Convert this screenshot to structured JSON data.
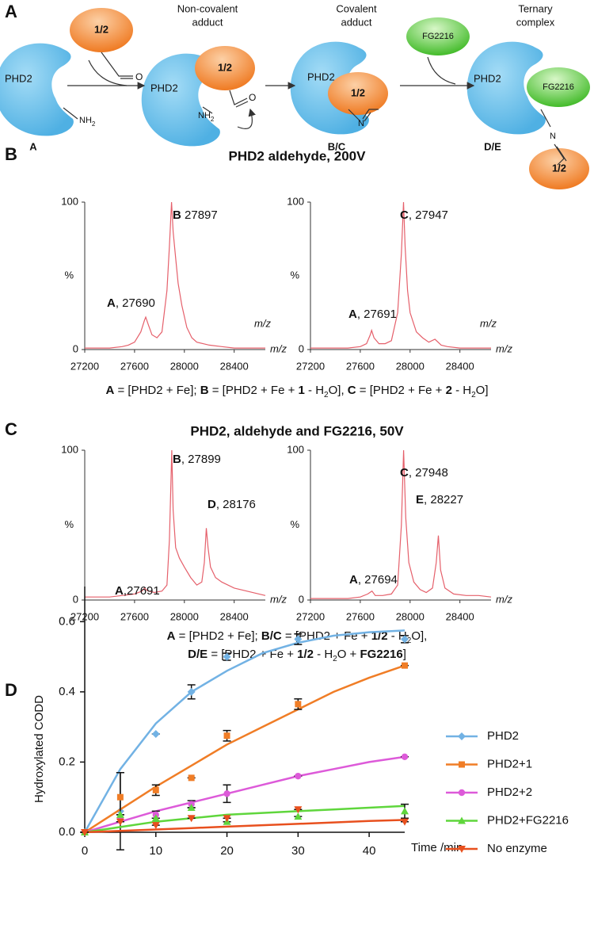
{
  "panel_labels": [
    "A",
    "B",
    "C",
    "D"
  ],
  "diagram": {
    "protein": "PHD2",
    "ligand": "1/2",
    "inhibitor": "FG2216",
    "amine": {
      "text": "NH",
      "sub": "2"
    },
    "oxygen": "O",
    "nitrogen": "N",
    "stages": [
      [
        "Non-covalent",
        "adduct"
      ],
      [
        "Covalent",
        "adduct"
      ],
      [
        "Ternary",
        "complex"
      ]
    ],
    "species": [
      "A",
      "B/C",
      "D/E"
    ]
  },
  "panel_b": {
    "title": "PHD2 aldehyde, 200V",
    "caption": [
      {
        "style": "bold",
        "text": "A"
      },
      {
        "style": "normal",
        "text": " = [PHD2 + Fe]; "
      },
      {
        "style": "bold",
        "text": "B"
      },
      {
        "style": "normal",
        "text": " = [PHD2 + Fe + "
      },
      {
        "style": "bold",
        "text": "1"
      },
      {
        "style": "normal",
        "text": " - H"
      },
      {
        "style": "sub",
        "text": "2"
      },
      {
        "style": "normal",
        "text": "O], "
      },
      {
        "style": "bold",
        "text": "C"
      },
      {
        "style": "normal",
        "text": " = [PHD2 + Fe + "
      },
      {
        "style": "bold",
        "text": "2"
      },
      {
        "style": "normal",
        "text": " - H"
      },
      {
        "style": "sub",
        "text": "2"
      },
      {
        "style": "normal",
        "text": "O]"
      }
    ]
  },
  "panel_c": {
    "title": "PHD2, aldehyde and FG2216, 50V",
    "caption": [
      [
        {
          "style": "bold",
          "text": "A"
        },
        {
          "style": "normal",
          "text": " = [PHD2 + Fe]; "
        },
        {
          "style": "bold",
          "text": "B/C"
        },
        {
          "style": "normal",
          "text": " = [PHD2 + Fe + "
        },
        {
          "style": "bold",
          "text": "1/2"
        },
        {
          "style": "normal",
          "text": " - H"
        },
        {
          "style": "sub",
          "text": "2"
        },
        {
          "style": "normal",
          "text": "O],"
        }
      ],
      [
        {
          "style": "bold",
          "text": "D/E"
        },
        {
          "style": "normal",
          "text": " = [PHD2 + Fe + "
        },
        {
          "style": "bold",
          "text": "1/2"
        },
        {
          "style": "normal",
          "text": " - H"
        },
        {
          "style": "sub",
          "text": "2"
        },
        {
          "style": "normal",
          "text": "O + "
        },
        {
          "style": "bold",
          "text": "FG2216"
        },
        {
          "style": "normal",
          "text": "]"
        }
      ]
    ]
  },
  "chart_data": [
    {
      "type": "line",
      "color": "#e5606b",
      "x": [
        27200,
        27300,
        27400,
        27500,
        27550,
        27600,
        27650,
        27680,
        27690,
        27710,
        27740,
        27780,
        27820,
        27860,
        27880,
        27897,
        27910,
        27930,
        27950,
        27980,
        28020,
        28060,
        28100,
        28150,
        28200,
        28300,
        28400,
        28500,
        28600,
        28650
      ],
      "values": [
        1,
        1,
        1,
        2,
        3,
        5,
        12,
        20,
        22,
        17,
        10,
        8,
        12,
        40,
        70,
        100,
        80,
        62,
        45,
        30,
        15,
        8,
        5,
        4,
        3,
        2,
        1,
        1,
        1,
        1
      ],
      "xlim": [
        27200,
        28650
      ],
      "xticks": [
        27200,
        27600,
        28000,
        28400
      ],
      "ylim": [
        0,
        100
      ],
      "yticks": [
        0,
        100
      ],
      "y_label": "%",
      "x_labels": [
        "m/z",
        "m/z"
      ],
      "annotations": [
        {
          "letter": "B",
          "text": " 27897"
        },
        {
          "letter": "A",
          "text": ", 27690"
        }
      ]
    },
    {
      "type": "line",
      "color": "#e5606b",
      "x": [
        27200,
        27300,
        27400,
        27500,
        27600,
        27650,
        27680,
        27691,
        27710,
        27750,
        27800,
        27850,
        27900,
        27930,
        27947,
        27960,
        27980,
        28000,
        28050,
        28100,
        28150,
        28200,
        28250,
        28300,
        28400,
        28500,
        28650
      ],
      "values": [
        1,
        1,
        1,
        1,
        2,
        4,
        10,
        13,
        8,
        4,
        4,
        6,
        25,
        65,
        100,
        70,
        40,
        25,
        12,
        8,
        5,
        7,
        3,
        2,
        1,
        1,
        1
      ],
      "xlim": [
        27200,
        28650
      ],
      "xticks": [
        27200,
        27600,
        28000,
        28400
      ],
      "ylim": [
        0,
        100
      ],
      "yticks": [
        0,
        100
      ],
      "y_label": "%",
      "x_labels": [
        "m/z",
        "m/z"
      ],
      "annotations": [
        {
          "letter": "C",
          "text": ", 27947"
        },
        {
          "letter": "A",
          "text": ", 27691"
        }
      ]
    },
    {
      "type": "line",
      "color": "#e5606b",
      "x": [
        27200,
        27300,
        27400,
        27500,
        27600,
        27660,
        27680,
        27691,
        27710,
        27760,
        27820,
        27860,
        27880,
        27899,
        27910,
        27930,
        27960,
        28000,
        28050,
        28100,
        28140,
        28160,
        28176,
        28190,
        28210,
        28250,
        28300,
        28400,
        28500,
        28600,
        28650
      ],
      "values": [
        2,
        2,
        2,
        3,
        4,
        6,
        8,
        7,
        6,
        5,
        6,
        10,
        40,
        100,
        60,
        35,
        28,
        22,
        15,
        10,
        12,
        25,
        48,
        35,
        22,
        15,
        12,
        8,
        6,
        4,
        3
      ],
      "xlim": [
        27200,
        28650
      ],
      "xticks": [
        27200,
        27600,
        28000,
        28400
      ],
      "ylim": [
        0,
        100
      ],
      "yticks": [
        0,
        100
      ],
      "y_label": "%",
      "x_labels": [
        "m/z"
      ],
      "annotations": [
        {
          "letter": "B",
          "text": ", 27899"
        },
        {
          "letter": "D",
          "text": ", 28176"
        },
        {
          "letter": "A",
          "text": ",27691"
        }
      ]
    },
    {
      "type": "line",
      "color": "#e5606b",
      "x": [
        27200,
        27300,
        27400,
        27500,
        27600,
        27660,
        27694,
        27720,
        27780,
        27850,
        27900,
        27930,
        27948,
        27965,
        27990,
        28030,
        28080,
        28130,
        28180,
        28210,
        28227,
        28245,
        28280,
        28350,
        28450,
        28550,
        28650
      ],
      "values": [
        1,
        1,
        1,
        1,
        2,
        4,
        6,
        3,
        3,
        4,
        10,
        50,
        100,
        55,
        25,
        12,
        7,
        5,
        8,
        25,
        43,
        20,
        8,
        4,
        3,
        3,
        2
      ],
      "xlim": [
        27200,
        28650
      ],
      "xticks": [
        27200,
        27600,
        28000,
        28400
      ],
      "ylim": [
        0,
        100
      ],
      "yticks": [
        0,
        100
      ],
      "y_label": "%",
      "x_labels": [
        "m/z"
      ],
      "annotations": [
        {
          "letter": "C",
          "text": ", 27948"
        },
        {
          "letter": "E",
          "text": ", 28227"
        },
        {
          "letter": "A",
          "text": ", 27694"
        }
      ]
    },
    {
      "type": "scatter",
      "y_label": "Hydroxylated CODD",
      "x_label": "Time /min",
      "xlim": [
        0,
        45
      ],
      "xticks": [
        0,
        10,
        20,
        30,
        40
      ],
      "ylim": [
        0,
        0.7
      ],
      "yticks": [
        {
          "value": 0,
          "label": "0.0"
        },
        0.2,
        0.4,
        0.6
      ],
      "x": [
        0,
        5,
        10,
        15,
        20,
        30,
        45
      ],
      "fit_x": [
        0,
        5,
        10,
        15,
        20,
        25,
        30,
        35,
        40,
        45
      ],
      "series": [
        {
          "name": "PHD2",
          "color": "#72b2e4",
          "marker": "diamond",
          "values": [
            0,
            0.06,
            0.28,
            0.4,
            0.5,
            0.55,
            0.55
          ],
          "errors": [
            0,
            0.11,
            0,
            0.02,
            0.01,
            0.015,
            0.01
          ],
          "fit": [
            0,
            0.18,
            0.31,
            0.4,
            0.46,
            0.51,
            0.54,
            0.56,
            0.57,
            0.575
          ]
        },
        {
          "name": "PHD2+1",
          "color": "#f07d26",
          "marker": "square",
          "values": [
            0,
            0.1,
            0.12,
            0.155,
            0.275,
            0.365,
            0.475
          ],
          "errors": [
            0,
            0.07,
            0.015,
            0,
            0.015,
            0.015,
            0
          ],
          "fit": [
            0,
            0.065,
            0.13,
            0.19,
            0.25,
            0.3,
            0.35,
            0.4,
            0.44,
            0.475
          ]
        },
        {
          "name": "PHD2+2",
          "color": "#dd5ad9",
          "marker": "circle",
          "values": [
            0,
            0.04,
            0.05,
            0.08,
            0.11,
            0.16,
            0.215
          ],
          "errors": [
            0,
            0.01,
            0.01,
            0.01,
            0.025,
            0,
            0
          ],
          "fit": [
            0,
            0.03,
            0.06,
            0.085,
            0.11,
            0.135,
            0.16,
            0.18,
            0.2,
            0.215
          ]
        },
        {
          "name": "PHD2+FG2216",
          "color": "#5fd63c",
          "marker": "triangle-up",
          "values": [
            0,
            0.05,
            0.04,
            0.07,
            0.03,
            0.045,
            0.06
          ],
          "errors": [
            0,
            0,
            0,
            0,
            0,
            0,
            0.02
          ],
          "fit": [
            0,
            0.015,
            0.03,
            0.04,
            0.05,
            0.055,
            0.06,
            0.065,
            0.07,
            0.075
          ]
        },
        {
          "name": "No enzyme",
          "color": "#e8501e",
          "marker": "triangle-down",
          "values": [
            0,
            0.03,
            0.02,
            0.04,
            0.04,
            0.065,
            0.03
          ],
          "errors": [
            0,
            0,
            0,
            0,
            0,
            0,
            0
          ],
          "fit": [
            0,
            0.004,
            0.008,
            0.012,
            0.016,
            0.02,
            0.024,
            0.028,
            0.032,
            0.035
          ]
        }
      ]
    }
  ]
}
